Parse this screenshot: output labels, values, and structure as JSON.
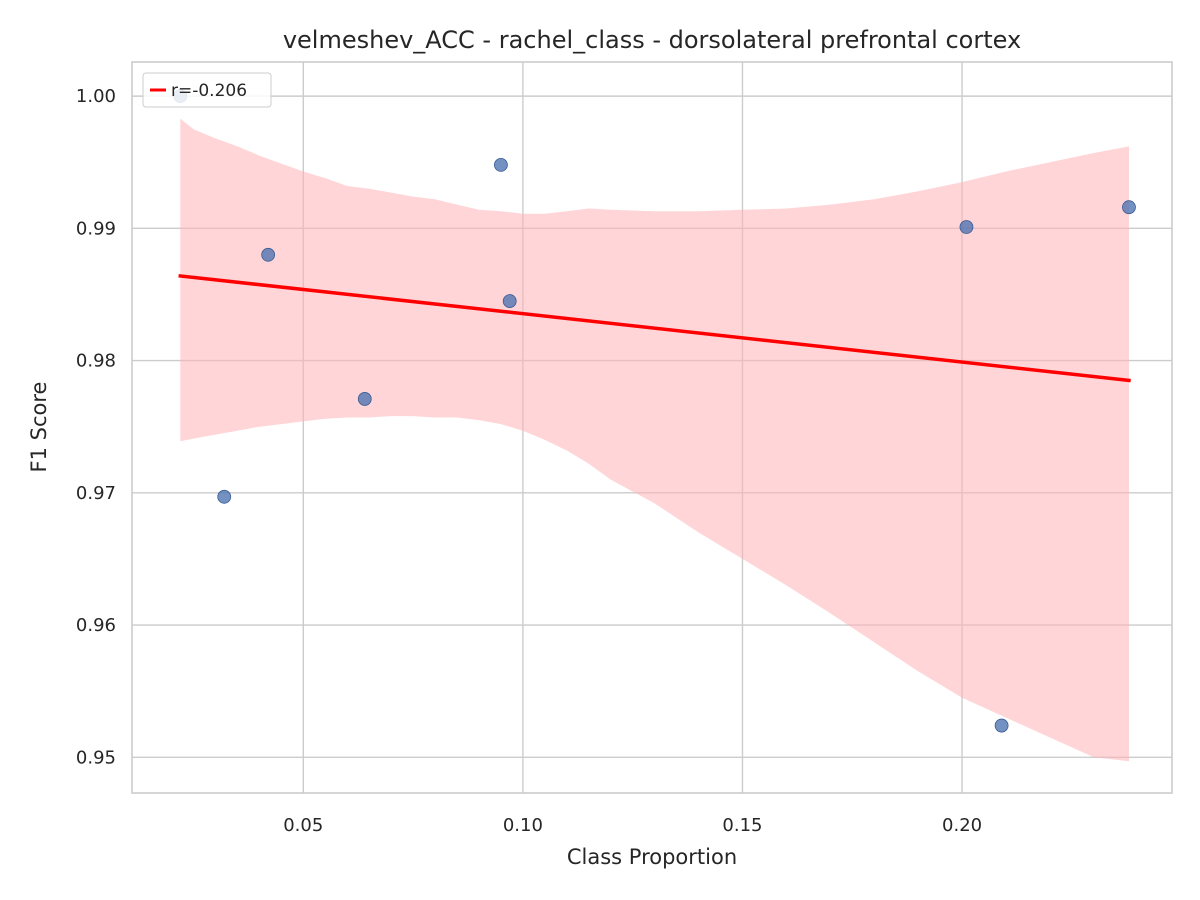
{
  "chart_data": {
    "type": "scatter",
    "title": "velmeshev_ACC - rachel_class - dorsolateral prefrontal cortex",
    "xlabel": "Class Proportion",
    "ylabel": "F1 Score",
    "xlim": [
      0.011,
      0.2478
    ],
    "ylim": [
      0.9473,
      1.00258
    ],
    "xticks": [
      0.05,
      0.1,
      0.15,
      0.2
    ],
    "xtick_labels": [
      "0.05",
      "0.10",
      "0.15",
      "0.20"
    ],
    "yticks": [
      0.95,
      0.96,
      0.97,
      0.98,
      0.99,
      1.0
    ],
    "ytick_labels": [
      "0.95",
      "0.96",
      "0.97",
      "0.98",
      "0.99",
      "1.00"
    ],
    "grid": true,
    "legend": {
      "position": "top-left",
      "entries": [
        {
          "label": "r=-0.206",
          "color": "#ff0000"
        }
      ]
    },
    "points": [
      {
        "x": 0.022,
        "y": 1.0
      },
      {
        "x": 0.032,
        "y": 0.9697
      },
      {
        "x": 0.042,
        "y": 0.988
      },
      {
        "x": 0.064,
        "y": 0.9771
      },
      {
        "x": 0.095,
        "y": 0.9948
      },
      {
        "x": 0.097,
        "y": 0.9845
      },
      {
        "x": 0.201,
        "y": 0.9901
      },
      {
        "x": 0.209,
        "y": 0.9524
      },
      {
        "x": 0.238,
        "y": 0.9916
      }
    ],
    "regression_line": {
      "x": [
        0.022,
        0.238
      ],
      "y": [
        0.9864,
        0.9785
      ],
      "color": "#ff0000"
    },
    "confidence_band": {
      "color": "#ffb3b8",
      "x": [
        0.022,
        0.025,
        0.03,
        0.035,
        0.04,
        0.045,
        0.05,
        0.055,
        0.06,
        0.065,
        0.07,
        0.075,
        0.08,
        0.085,
        0.09,
        0.095,
        0.1,
        0.105,
        0.11,
        0.115,
        0.12,
        0.13,
        0.14,
        0.15,
        0.16,
        0.17,
        0.18,
        0.19,
        0.2,
        0.21,
        0.22,
        0.23,
        0.238
      ],
      "upper": [
        0.9983,
        0.9975,
        0.9968,
        0.9962,
        0.9955,
        0.9949,
        0.9943,
        0.9938,
        0.9932,
        0.993,
        0.9927,
        0.9924,
        0.9922,
        0.9918,
        0.9914,
        0.9913,
        0.9911,
        0.9911,
        0.9913,
        0.9915,
        0.9914,
        0.9913,
        0.9913,
        0.9914,
        0.9915,
        0.9918,
        0.9922,
        0.9928,
        0.9935,
        0.9943,
        0.995,
        0.9957,
        0.9962
      ],
      "lower": [
        0.9739,
        0.9741,
        0.9744,
        0.9747,
        0.975,
        0.9752,
        0.9754,
        0.9756,
        0.9757,
        0.9757,
        0.9758,
        0.9758,
        0.9757,
        0.9757,
        0.9755,
        0.9752,
        0.9747,
        0.974,
        0.9732,
        0.9722,
        0.971,
        0.9692,
        0.967,
        0.965,
        0.963,
        0.9609,
        0.9587,
        0.9565,
        0.9545,
        0.953,
        0.9515,
        0.95,
        0.9497
      ]
    }
  }
}
